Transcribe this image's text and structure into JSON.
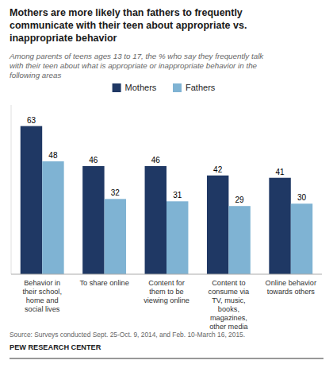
{
  "chart_data": {
    "type": "bar",
    "title": "Mothers are more likely than fathers to frequently\ncommunicate with their teen about appropriate vs.\ninappropriate behavior",
    "subtitle": "Among parents of teens ages 13 to 17, the % who say they frequently talk\nwith their teen about what is appropriate or inappropriate behavior in the\nfollowing areas",
    "categories": [
      "Behavior in\ntheir school,\nhome and\nsocial lives",
      "To share online",
      "Content for\nthem to be\nviewing online",
      "Content to\nconsume via\nTV, music,\nbooks,\nmagazines,\nother media",
      "Online behavior\ntowards others"
    ],
    "series": [
      {
        "name": "Mothers",
        "color": "#1F3864",
        "values": [
          63,
          46,
          46,
          42,
          41
        ]
      },
      {
        "name": "Fathers",
        "color": "#7FB3D3",
        "values": [
          48,
          32,
          31,
          29,
          30
        ]
      }
    ],
    "ylim": [
      0,
      72
    ],
    "data_labels": true,
    "tick_labels": "x",
    "grid": false,
    "legend": "top",
    "annotations": [
      "Source: Surveys conducted Sept. 25-Oct. 9, 2014, and Feb. 10-March 16, 2015.",
      "PEW RESEARCH CENTER"
    ]
  }
}
